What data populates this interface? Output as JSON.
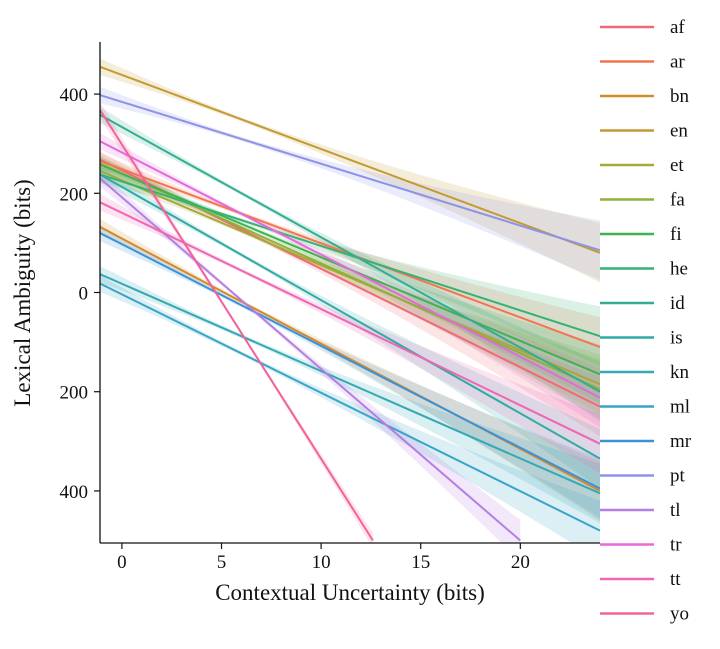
{
  "chart_data": {
    "type": "line",
    "xlabel": "Contextual Uncertainty (bits)",
    "ylabel": "Lexical Ambiguity (bits)",
    "xlim": [
      -1.1,
      24
    ],
    "ylim": [
      -505,
      505
    ],
    "xticks": [
      0,
      5,
      10,
      15,
      20
    ],
    "yticks": [
      400,
      200,
      0,
      -200,
      -400
    ],
    "ytick_labels": [
      "400",
      "200",
      "0",
      "200",
      "400"
    ],
    "grid": false,
    "legend_position": "right",
    "confidence_bands": true,
    "series": [
      {
        "name": "af",
        "color": "#f0697a",
        "x": [
          -1.1,
          24
        ],
        "y": [
          268,
          -230
        ]
      },
      {
        "name": "ar",
        "color": "#f47450",
        "x": [
          -1.1,
          24
        ],
        "y": [
          265,
          -110
        ]
      },
      {
        "name": "bn",
        "color": "#d48a2a",
        "x": [
          -1.1,
          24
        ],
        "y": [
          132,
          -400
        ]
      },
      {
        "name": "en",
        "color": "#c49a32",
        "x": [
          -1.1,
          24
        ],
        "y": [
          455,
          80
        ]
      },
      {
        "name": "et",
        "color": "#a7a837",
        "x": [
          -1.1,
          24
        ],
        "y": [
          245,
          -185
        ]
      },
      {
        "name": "fa",
        "color": "#8fb03b",
        "x": [
          -1.1,
          24
        ],
        "y": [
          260,
          -195
        ]
      },
      {
        "name": "fi",
        "color": "#3fb34f",
        "x": [
          -1.1,
          24
        ],
        "y": [
          258,
          -165
        ]
      },
      {
        "name": "he",
        "color": "#36b273",
        "x": [
          -1.1,
          24
        ],
        "y": [
          238,
          -88
        ]
      },
      {
        "name": "id",
        "color": "#33ad92",
        "x": [
          -1.1,
          24
        ],
        "y": [
          358,
          -200
        ]
      },
      {
        "name": "is",
        "color": "#30aaa6",
        "x": [
          -1.1,
          24
        ],
        "y": [
          238,
          -335
        ]
      },
      {
        "name": "kn",
        "color": "#34a8b4",
        "x": [
          -1.1,
          24
        ],
        "y": [
          37,
          -405
        ]
      },
      {
        "name": "ml",
        "color": "#38a5c8",
        "x": [
          -1.1,
          24
        ],
        "y": [
          18,
          -480
        ]
      },
      {
        "name": "mr",
        "color": "#3a93d8",
        "x": [
          -1.1,
          24
        ],
        "y": [
          120,
          -395
        ]
      },
      {
        "name": "pt",
        "color": "#8c93e8",
        "x": [
          -1.1,
          24
        ],
        "y": [
          398,
          85
        ]
      },
      {
        "name": "tl",
        "color": "#b57ee2",
        "x": [
          -1.1,
          20
        ],
        "y": [
          230,
          -500
        ]
      },
      {
        "name": "tr",
        "color": "#e36ad9",
        "x": [
          -1.1,
          24
        ],
        "y": [
          305,
          -212
        ]
      },
      {
        "name": "tt",
        "color": "#ef66b2",
        "x": [
          -1.1,
          24
        ],
        "y": [
          182,
          -305
        ]
      },
      {
        "name": "yo",
        "color": "#f2639a",
        "x": [
          -1.1,
          12.6
        ],
        "y": [
          368,
          -500
        ]
      }
    ]
  }
}
